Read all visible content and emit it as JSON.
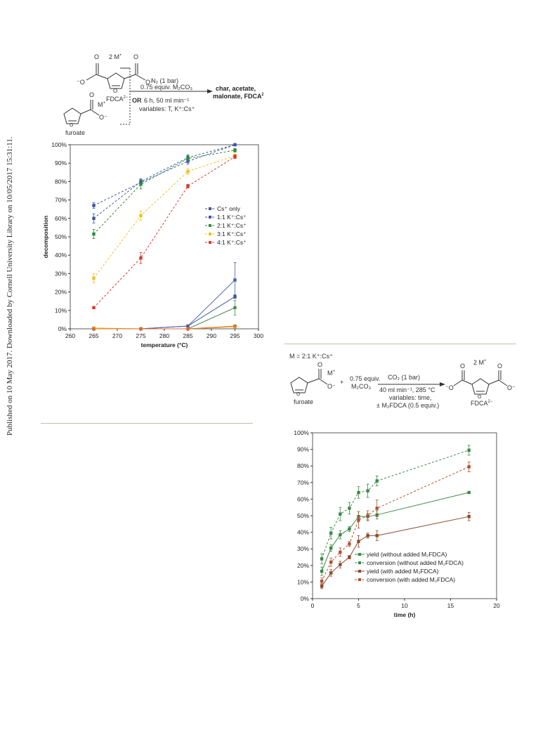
{
  "side_note": "Published on 10 May 2017. Downloaded by Cornell University Library on 10/05/2017 15:31:11.",
  "scheme1": {
    "top_charge": "2 M",
    "top_charge_sup": "+",
    "fdca_label": "FDCA",
    "fdca_sup": "2−",
    "or_label": "OR",
    "furoate_charge": "M",
    "furoate_charge_sup": "+",
    "furoate_label": "furoate",
    "cond1": "N₂ (1 bar)",
    "cond2": "0.75 equiv. M₂CO₃",
    "cond3": "6 h, 50 ml min⁻¹",
    "cond4": "variables: T, K⁺:Cs⁺",
    "products1": "char, acetate,",
    "products2": "malonate, FDCA",
    "products_sup": "2−"
  },
  "scheme2": {
    "m_def": "M = 2:1 K⁺:Cs⁺",
    "furoate_charge": "M",
    "furoate_charge_sup": "+",
    "plus": "+",
    "reagent1": "0.75 equiv.",
    "reagent2": "M₂CO₃",
    "cond1": "CO₂ (1 bar)",
    "cond2": "40 ml min⁻¹, 285 °C",
    "cond3": "variables: time,",
    "cond4": "± M₂FDCA (0.5 equiv.)",
    "furoate_label": "furoate",
    "product_charge": "2 M",
    "product_charge_sup": "+",
    "product_label": "FDCA",
    "product_sup": "2−"
  },
  "chart_data": [
    {
      "type": "line",
      "xlabel": "temperature (°C)",
      "ylabel": "decomposition",
      "xlim": [
        260,
        300
      ],
      "ylim": [
        0,
        100
      ],
      "xticks": [
        260,
        265,
        270,
        275,
        280,
        285,
        290,
        295,
        300
      ],
      "yticks": [
        "0%",
        "10%",
        "20%",
        "30%",
        "40%",
        "50%",
        "60%",
        "70%",
        "80%",
        "90%",
        "100%"
      ],
      "legend_position": "right",
      "x": [
        265,
        275,
        285,
        295
      ],
      "series": [
        {
          "name": "Cs⁺ only",
          "color": "#3a5a8c",
          "dash": true,
          "values": [
            60,
            80,
            93,
            100
          ],
          "err": [
            2.5,
            1.5,
            1.5,
            0.5
          ]
        },
        {
          "name": "1:1 K⁺:Cs⁺",
          "color": "#4052b0",
          "dash": true,
          "values": [
            67,
            79.5,
            91,
            100
          ],
          "err": [
            1.5,
            1.5,
            1.5,
            0.5
          ]
        },
        {
          "name": "2:1 K⁺:Cs⁺",
          "color": "#2e8b3a",
          "dash": true,
          "values": [
            51.5,
            78.5,
            92.5,
            97
          ],
          "err": [
            2.5,
            2.5,
            1.5,
            1
          ]
        },
        {
          "name": "3:1 K⁺:Cs⁺",
          "color": "#f0c020",
          "dash": true,
          "values": [
            27.5,
            61.5,
            85.5,
            94
          ],
          "err": [
            2.5,
            2.5,
            1.5,
            1
          ]
        },
        {
          "name": "4:1 K⁺:Cs⁺",
          "color": "#d8382c",
          "dash": true,
          "values": [
            11.5,
            38.5,
            77.5,
            93.5
          ],
          "err": [
            0.5,
            3,
            1,
            1
          ]
        }
      ],
      "low_series": [
        {
          "name": "Cs⁺ only",
          "color": "#3a5a8c",
          "values": [
            0,
            0,
            1.5,
            17.5
          ],
          "err": [
            0.5,
            0.5,
            0.5,
            1
          ]
        },
        {
          "name": "1:1 K⁺:Cs⁺",
          "color": "#4a5aaa",
          "values": [
            0,
            0,
            1.5,
            26.5
          ],
          "err": [
            0.5,
            0.5,
            0.5,
            9.5
          ]
        },
        {
          "name": "2:1 K⁺:Cs⁺",
          "color": "#4e8b50",
          "values": [
            0,
            0,
            0,
            11.5
          ],
          "err": [
            0.5,
            0.5,
            0.5,
            4
          ]
        },
        {
          "name": "3:1 K⁺:Cs⁺",
          "color": "#f0c020",
          "values": [
            0.5,
            0,
            0,
            1
          ],
          "err": [
            0.5,
            0.5,
            0.5,
            0.5
          ]
        },
        {
          "name": "4:1 K⁺:Cs⁺",
          "color": "#e06a30",
          "values": [
            0,
            0,
            0,
            1.5
          ],
          "err": [
            0.5,
            0.5,
            0.5,
            0.5
          ]
        }
      ]
    },
    {
      "type": "line",
      "xlabel": "time (h)",
      "ylabel": "",
      "xlim": [
        0,
        20
      ],
      "ylim": [
        0,
        100
      ],
      "xticks": [
        0,
        5,
        10,
        15,
        20
      ],
      "yticks": [
        "0%",
        "10%",
        "20%",
        "30%",
        "40%",
        "50%",
        "60%",
        "70%",
        "80%",
        "90%",
        "100%"
      ],
      "legend_position": "bottom-right",
      "series": [
        {
          "name": "yield (without added M₂FDCA)",
          "color": "#3a8a45",
          "dash": false,
          "x": [
            1,
            2,
            3,
            4,
            5,
            6,
            7,
            17
          ],
          "values": [
            16.5,
            30.5,
            38.5,
            42,
            49.5,
            49.5,
            50.5,
            64
          ],
          "err": [
            2.5,
            2,
            2.5,
            1.5,
            3,
            2,
            2.5,
            0.5
          ]
        },
        {
          "name": "conversion (without added M₂FDCA)",
          "color": "#3a8a45",
          "dash": true,
          "x": [
            1,
            2,
            3,
            4,
            5,
            6,
            7,
            17
          ],
          "values": [
            24,
            39.5,
            51,
            54.5,
            64,
            65,
            71,
            89.5
          ],
          "err": [
            3,
            3.5,
            4,
            3.5,
            3.5,
            4,
            3,
            3
          ]
        },
        {
          "name": "yield (with added M₂FDCA)",
          "color": "#8b4a2c",
          "dash": false,
          "x": [
            1,
            2,
            3,
            4,
            5,
            6,
            7,
            17
          ],
          "values": [
            7.5,
            15.5,
            20.5,
            25,
            34.5,
            38,
            38,
            49.5
          ],
          "err": [
            1.5,
            2,
            2,
            1,
            3.5,
            1.5,
            3,
            2.5
          ]
        },
        {
          "name": "conversion (with added M₂FDCA)",
          "color": "#b05030",
          "dash": true,
          "x": [
            1,
            2,
            3,
            4,
            5,
            6,
            7,
            17
          ],
          "values": [
            10.5,
            22,
            28,
            33,
            47.5,
            50,
            54.5,
            79.5
          ],
          "err": [
            2,
            2.5,
            2.5,
            1.5,
            5,
            3,
            5,
            3
          ]
        }
      ]
    }
  ]
}
